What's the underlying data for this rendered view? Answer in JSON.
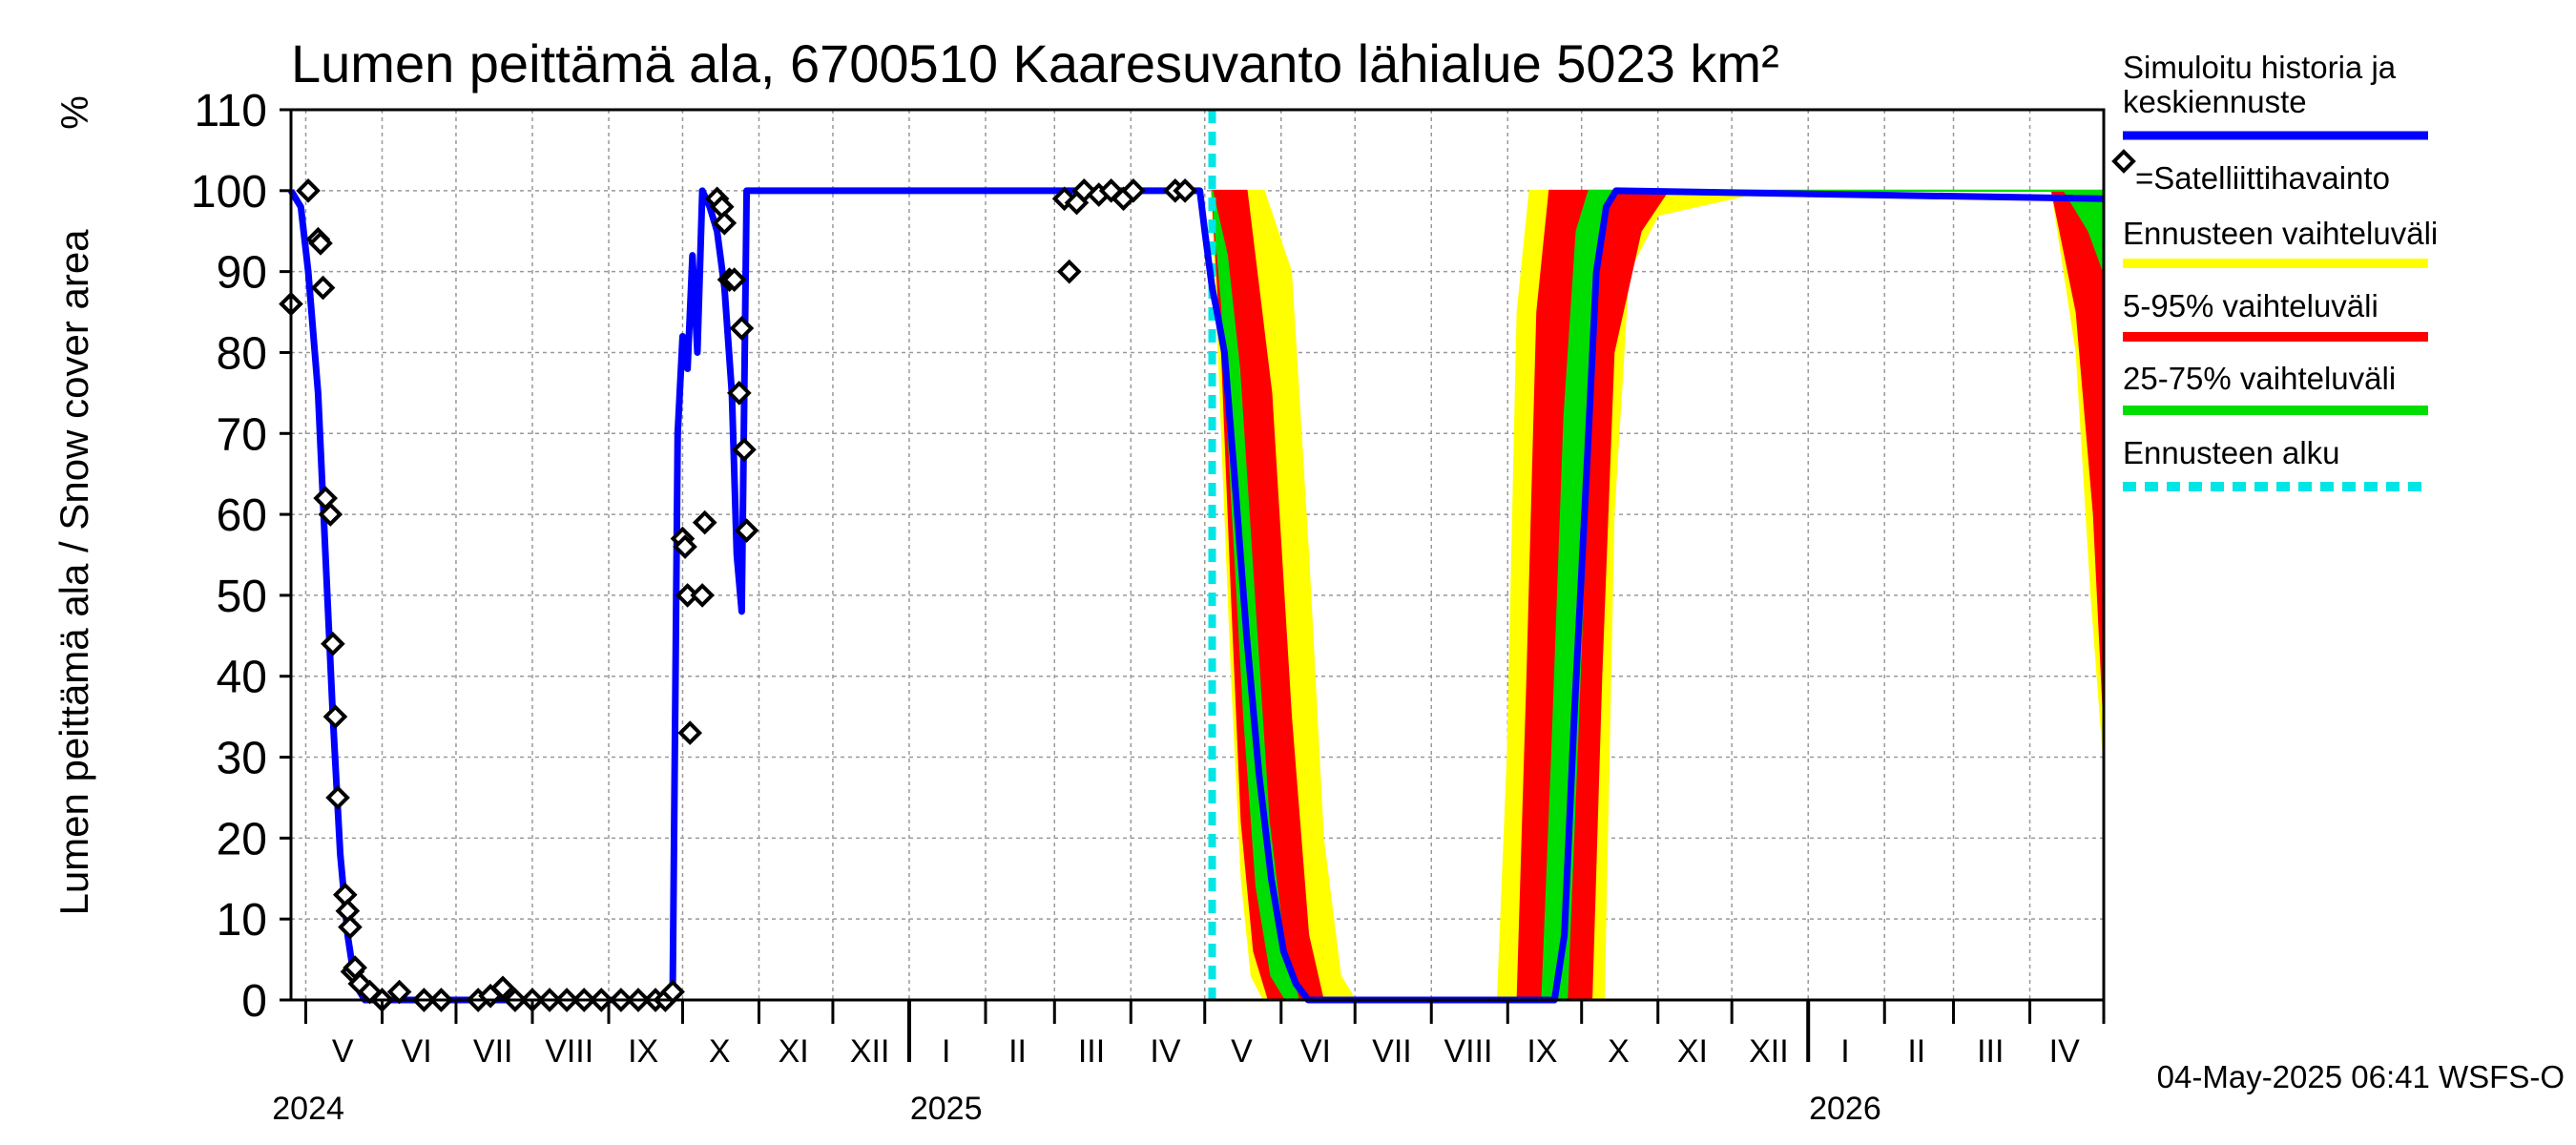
{
  "chart_data": {
    "type": "area",
    "title": "Lumen peittämä ala, 6700510 Kaaresuvanto lähialue 5023 km²",
    "ylabel": "Lumen peittämä ala / Snow cover area",
    "yunit": "%",
    "ylim": [
      0,
      110
    ],
    "yticks": [
      0,
      10,
      20,
      30,
      40,
      50,
      60,
      70,
      80,
      90,
      100,
      110
    ],
    "xlim": [
      "2024-04-25",
      "2026-05-01"
    ],
    "month_labels": [
      {
        "label": "V",
        "date": "2024-05-16"
      },
      {
        "label": "VI",
        "date": "2024-06-15"
      },
      {
        "label": "VII",
        "date": "2024-07-16"
      },
      {
        "label": "VIII",
        "date": "2024-08-16"
      },
      {
        "label": "IX",
        "date": "2024-09-15"
      },
      {
        "label": "X",
        "date": "2024-10-16"
      },
      {
        "label": "XI",
        "date": "2024-11-15"
      },
      {
        "label": "XII",
        "date": "2024-12-16"
      },
      {
        "label": "I",
        "date": "2025-01-16"
      },
      {
        "label": "II",
        "date": "2025-02-14"
      },
      {
        "label": "III",
        "date": "2025-03-16"
      },
      {
        "label": "IV",
        "date": "2025-04-15"
      },
      {
        "label": "V",
        "date": "2025-05-16"
      },
      {
        "label": "VI",
        "date": "2025-06-15"
      },
      {
        "label": "VII",
        "date": "2025-07-16"
      },
      {
        "label": "VIII",
        "date": "2025-08-16"
      },
      {
        "label": "IX",
        "date": "2025-09-15"
      },
      {
        "label": "X",
        "date": "2025-10-16"
      },
      {
        "label": "XI",
        "date": "2025-11-15"
      },
      {
        "label": "XII",
        "date": "2025-12-16"
      },
      {
        "label": "I",
        "date": "2026-01-16"
      },
      {
        "label": "II",
        "date": "2026-02-14"
      },
      {
        "label": "III",
        "date": "2026-03-16"
      },
      {
        "label": "IV",
        "date": "2026-04-15"
      }
    ],
    "year_labels": [
      {
        "label": "2024",
        "date": "2024-05-02"
      },
      {
        "label": "2025",
        "date": "2025-01-16"
      },
      {
        "label": "2026",
        "date": "2026-01-16"
      }
    ],
    "forecast_start": "2025-05-04",
    "series": [
      {
        "name": "Simuloitu historia ja keskiennuste",
        "color": "#0000ff",
        "points": [
          [
            "2024-04-25",
            100
          ],
          [
            "2024-04-29",
            98
          ],
          [
            "2024-05-02",
            90
          ],
          [
            "2024-05-06",
            75
          ],
          [
            "2024-05-09",
            55
          ],
          [
            "2024-05-12",
            35
          ],
          [
            "2024-05-15",
            18
          ],
          [
            "2024-05-18",
            8
          ],
          [
            "2024-05-21",
            2
          ],
          [
            "2024-05-25",
            0
          ],
          [
            "2024-09-24",
            0
          ],
          [
            "2024-09-27",
            2
          ],
          [
            "2024-09-29",
            70
          ],
          [
            "2024-10-01",
            82
          ],
          [
            "2024-10-03",
            78
          ],
          [
            "2024-10-05",
            92
          ],
          [
            "2024-10-07",
            80
          ],
          [
            "2024-10-09",
            100
          ],
          [
            "2024-10-12",
            98
          ],
          [
            "2024-10-15",
            95
          ],
          [
            "2024-10-18",
            88
          ],
          [
            "2024-10-21",
            75
          ],
          [
            "2024-10-23",
            55
          ],
          [
            "2024-10-25",
            48
          ],
          [
            "2024-10-27",
            100
          ],
          [
            "2024-12-31",
            100
          ],
          [
            "2025-04-29",
            100
          ],
          [
            "2025-05-01",
            95
          ],
          [
            "2025-05-04",
            88
          ],
          [
            "2025-05-06",
            85
          ],
          [
            "2025-05-09",
            80
          ],
          [
            "2025-05-13",
            65
          ],
          [
            "2025-05-18",
            45
          ],
          [
            "2025-05-23",
            28
          ],
          [
            "2025-05-28",
            15
          ],
          [
            "2025-06-02",
            6
          ],
          [
            "2025-06-07",
            2
          ],
          [
            "2025-06-12",
            0
          ],
          [
            "2025-09-20",
            0
          ],
          [
            "2025-09-24",
            8
          ],
          [
            "2025-09-28",
            35
          ],
          [
            "2025-10-03",
            65
          ],
          [
            "2025-10-07",
            90
          ],
          [
            "2025-10-11",
            98
          ],
          [
            "2025-10-15",
            100
          ],
          [
            "2026-05-01",
            99
          ]
        ]
      },
      {
        "name": "=Satelliittihavainto",
        "color": "#000000",
        "points": [
          [
            "2024-04-25",
            86
          ],
          [
            "2024-05-02",
            100
          ],
          [
            "2024-05-06",
            94
          ],
          [
            "2024-05-07",
            93.5
          ],
          [
            "2024-05-08",
            88
          ],
          [
            "2024-05-09",
            62
          ],
          [
            "2024-05-11",
            60
          ],
          [
            "2024-05-12",
            44
          ],
          [
            "2024-05-13",
            35
          ],
          [
            "2024-05-14",
            25
          ],
          [
            "2024-05-17",
            13
          ],
          [
            "2024-05-18",
            11
          ],
          [
            "2024-05-19",
            9
          ],
          [
            "2024-05-20",
            3.5
          ],
          [
            "2024-05-21",
            4
          ],
          [
            "2024-05-23",
            2
          ],
          [
            "2024-05-27",
            1
          ],
          [
            "2024-06-01",
            0
          ],
          [
            "2024-06-08",
            1
          ],
          [
            "2024-06-18",
            0
          ],
          [
            "2024-06-25",
            0
          ],
          [
            "2024-07-10",
            0
          ],
          [
            "2024-07-15",
            0.5
          ],
          [
            "2024-07-20",
            1.5
          ],
          [
            "2024-07-25",
            0
          ],
          [
            "2024-08-01",
            0
          ],
          [
            "2024-08-08",
            0
          ],
          [
            "2024-08-15",
            0
          ],
          [
            "2024-08-22",
            0
          ],
          [
            "2024-08-29",
            0
          ],
          [
            "2024-09-06",
            0
          ],
          [
            "2024-09-13",
            0
          ],
          [
            "2024-09-20",
            0
          ],
          [
            "2024-09-24",
            0
          ],
          [
            "2024-09-27",
            1
          ],
          [
            "2024-10-01",
            57
          ],
          [
            "2024-10-02",
            56
          ],
          [
            "2024-10-03",
            50
          ],
          [
            "2024-10-04",
            33
          ],
          [
            "2024-10-09",
            50
          ],
          [
            "2024-10-10",
            59
          ],
          [
            "2024-10-15",
            99
          ],
          [
            "2024-10-17",
            98
          ],
          [
            "2024-10-18",
            96
          ],
          [
            "2024-10-20",
            89
          ],
          [
            "2024-10-22",
            89
          ],
          [
            "2024-10-24",
            75
          ],
          [
            "2024-10-25",
            83
          ],
          [
            "2024-10-26",
            68
          ],
          [
            "2024-10-27",
            58
          ],
          [
            "2025-03-05",
            99
          ],
          [
            "2025-03-07",
            90
          ],
          [
            "2025-03-10",
            98.5
          ],
          [
            "2025-03-13",
            100
          ],
          [
            "2025-03-19",
            99.5
          ],
          [
            "2025-03-24",
            100
          ],
          [
            "2025-03-29",
            99
          ],
          [
            "2025-04-02",
            100
          ],
          [
            "2025-04-19",
            100
          ],
          [
            "2025-04-23",
            100
          ]
        ]
      },
      {
        "name": "Ennusteen vaihteluväli",
        "color": "#ffff00",
        "upper": [
          [
            "2025-05-04",
            100
          ],
          [
            "2025-05-25",
            100
          ],
          [
            "2025-06-05",
            90
          ],
          [
            "2025-06-12",
            55
          ],
          [
            "2025-06-18",
            20
          ],
          [
            "2025-06-25",
            3
          ],
          [
            "2025-07-01",
            0
          ],
          [
            "2025-08-28",
            0
          ],
          [
            "2025-09-01",
            30
          ],
          [
            "2025-09-05",
            85
          ],
          [
            "2025-09-10",
            100
          ],
          [
            "2026-05-01",
            100
          ]
        ],
        "lower": [
          [
            "2025-05-04",
            100
          ],
          [
            "2025-05-08",
            70
          ],
          [
            "2025-05-12",
            40
          ],
          [
            "2025-05-16",
            15
          ],
          [
            "2025-05-20",
            3
          ],
          [
            "2025-05-25",
            0
          ],
          [
            "2025-10-10",
            0
          ],
          [
            "2025-10-14",
            60
          ],
          [
            "2025-10-20",
            90
          ],
          [
            "2025-11-01",
            97
          ],
          [
            "2025-12-15",
            100
          ],
          [
            "2026-04-10",
            100
          ],
          [
            "2026-04-20",
            80
          ],
          [
            "2026-04-26",
            50
          ],
          [
            "2026-05-01",
            30
          ]
        ]
      },
      {
        "name": "5-95% vaihteluväli",
        "color": "#ff0000",
        "upper": [
          [
            "2025-05-04",
            100
          ],
          [
            "2025-05-18",
            100
          ],
          [
            "2025-05-28",
            75
          ],
          [
            "2025-06-05",
            35
          ],
          [
            "2025-06-12",
            8
          ],
          [
            "2025-06-18",
            0
          ],
          [
            "2025-09-05",
            0
          ],
          [
            "2025-09-09",
            40
          ],
          [
            "2025-09-13",
            85
          ],
          [
            "2025-09-18",
            100
          ],
          [
            "2026-05-01",
            100
          ]
        ],
        "lower": [
          [
            "2025-05-04",
            100
          ],
          [
            "2025-05-08",
            80
          ],
          [
            "2025-05-12",
            50
          ],
          [
            "2025-05-16",
            22
          ],
          [
            "2025-05-21",
            6
          ],
          [
            "2025-05-27",
            0
          ],
          [
            "2025-10-05",
            0
          ],
          [
            "2025-10-09",
            40
          ],
          [
            "2025-10-14",
            80
          ],
          [
            "2025-10-25",
            95
          ],
          [
            "2025-11-05",
            100
          ],
          [
            "2026-04-10",
            100
          ],
          [
            "2026-04-20",
            85
          ],
          [
            "2026-04-27",
            60
          ],
          [
            "2026-05-01",
            35
          ]
        ]
      },
      {
        "name": "25-75% vaihteluväli",
        "color": "#00dd00",
        "upper": [
          [
            "2025-05-04",
            100
          ],
          [
            "2025-05-10",
            92
          ],
          [
            "2025-05-15",
            78
          ],
          [
            "2025-05-21",
            50
          ],
          [
            "2025-05-27",
            22
          ],
          [
            "2025-06-02",
            7
          ],
          [
            "2025-06-08",
            0
          ],
          [
            "2025-09-15",
            0
          ],
          [
            "2025-09-19",
            30
          ],
          [
            "2025-09-24",
            72
          ],
          [
            "2025-09-29",
            95
          ],
          [
            "2025-10-04",
            100
          ],
          [
            "2026-05-01",
            100
          ]
        ],
        "lower": [
          [
            "2025-05-04",
            100
          ],
          [
            "2025-05-08",
            86
          ],
          [
            "2025-05-12",
            62
          ],
          [
            "2025-05-17",
            35
          ],
          [
            "2025-05-22",
            14
          ],
          [
            "2025-05-28",
            3
          ],
          [
            "2025-06-03",
            0
          ],
          [
            "2025-09-25",
            0
          ],
          [
            "2025-09-29",
            30
          ],
          [
            "2025-10-04",
            70
          ],
          [
            "2025-10-09",
            95
          ],
          [
            "2025-10-13",
            100
          ],
          [
            "2026-04-15",
            100
          ],
          [
            "2026-04-25",
            95
          ],
          [
            "2026-05-01",
            90
          ]
        ]
      }
    ],
    "legend": {
      "placement": "right",
      "entries": [
        {
          "label": "Simuloitu historia ja keskiennuste",
          "color": "#0000ff",
          "style": "line"
        },
        {
          "label": "=Satelliittihavainto",
          "color": "#000000",
          "style": "marker"
        },
        {
          "label": "Ennusteen vaihteluväli",
          "color": "#ffff00",
          "style": "line"
        },
        {
          "label": "5-95% vaihteluväli",
          "color": "#ff0000",
          "style": "line"
        },
        {
          "label": "25-75% vaihteluväli",
          "color": "#00dd00",
          "style": "line"
        },
        {
          "label": "Ennusteen alku",
          "color": "#00e5e5",
          "style": "dashed"
        }
      ]
    },
    "grid": true,
    "footer": "04-May-2025 06:41 WSFS-O"
  }
}
